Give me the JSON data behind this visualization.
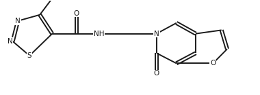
{
  "bg_color": "#ffffff",
  "line_color": "#1a1a1a",
  "lw": 1.4,
  "fs": 7.5,
  "fig_width": 3.8,
  "fig_height": 1.4,
  "dpi": 100,
  "xlim": [
    0,
    10
  ],
  "ylim": [
    0,
    3.68
  ]
}
